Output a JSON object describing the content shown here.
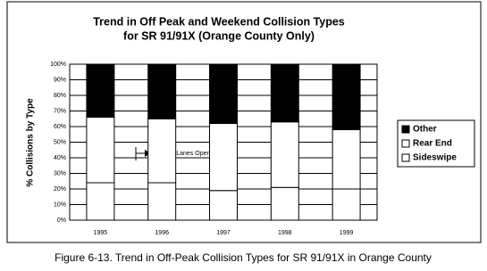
{
  "chart_data": {
    "type": "stacked_bar",
    "title": [
      "Trend in Off Peak and Weekend Collision Types",
      "for SR 91/91X (Orange County Only)"
    ],
    "y_label": "% Collisions by Type",
    "caption": "Figure 6-13. Trend in Off-Peak Collision Types for SR 91/91X in Orange County",
    "annotation": "Express Lanes Open",
    "categories": [
      "1995",
      "1996",
      "1997",
      "1998",
      "1999"
    ],
    "series": [
      {
        "name": "Sideswipe",
        "color": "#ffffff",
        "values": [
          24,
          24,
          19,
          21,
          20
        ]
      },
      {
        "name": "Rear End",
        "color": "#ffffff",
        "values": [
          42,
          41,
          43,
          42,
          38
        ]
      },
      {
        "name": "Other",
        "color": "#000000",
        "values": [
          34,
          35,
          38,
          37,
          42
        ]
      }
    ],
    "ylim": [
      0,
      100
    ],
    "yticks": [
      {
        "value": 0,
        "label": "0%"
      },
      {
        "value": 10,
        "label": "10%"
      },
      {
        "value": 20,
        "label": "20%"
      },
      {
        "value": 30,
        "label": "30%"
      },
      {
        "value": 40,
        "label": "40%"
      },
      {
        "value": 50,
        "label": "50%"
      },
      {
        "value": 60,
        "label": "60%"
      },
      {
        "value": 70,
        "label": "70%"
      },
      {
        "value": 80,
        "label": "80%"
      },
      {
        "value": 90,
        "label": "90%"
      },
      {
        "value": 100,
        "label": "100%"
      }
    ],
    "grid": true,
    "legend": "right"
  }
}
